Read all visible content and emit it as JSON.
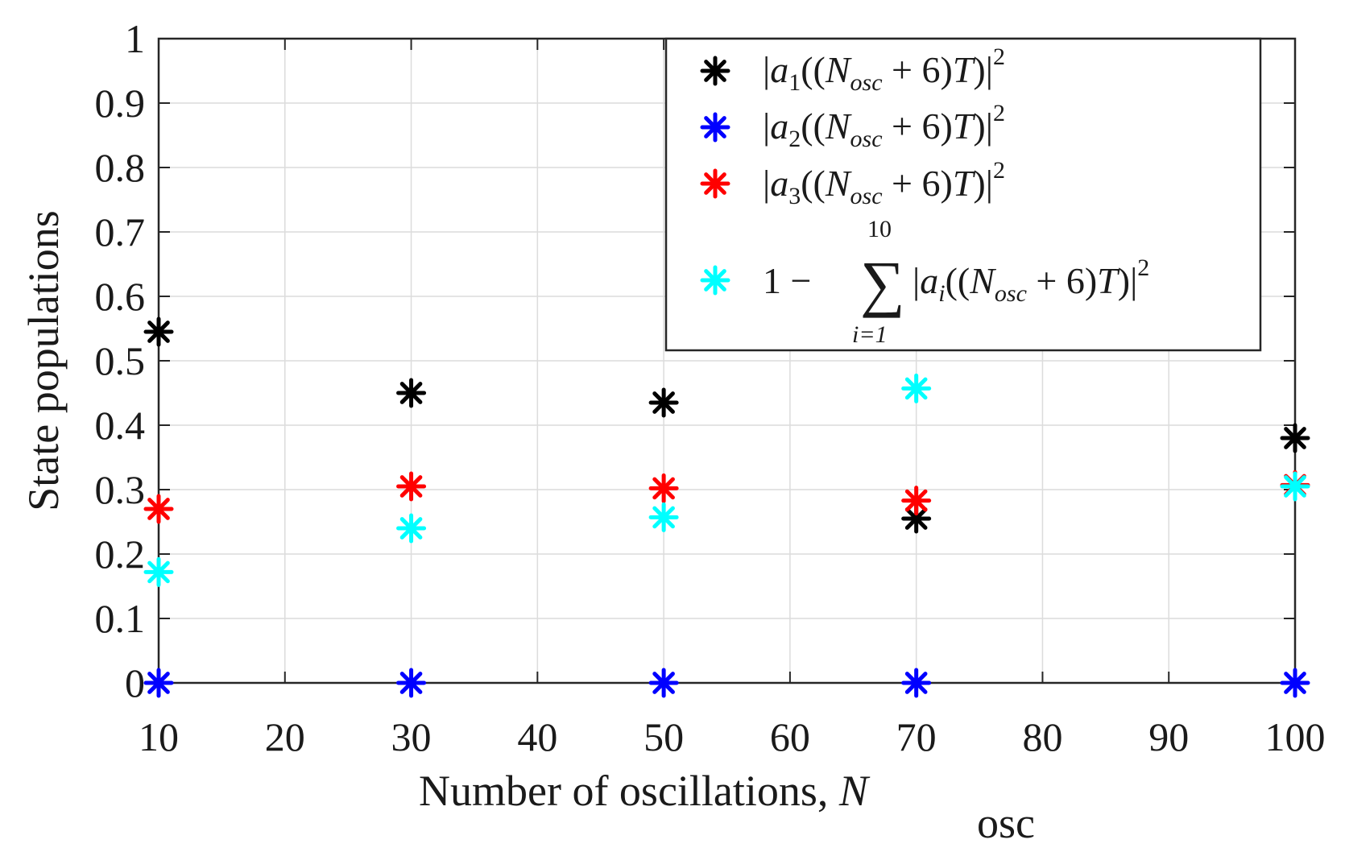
{
  "chart_data": {
    "type": "scatter",
    "title": "",
    "xlabel": "Number of oscillations, ",
    "xlabel_var": "N",
    "xlabel_sub": "osc",
    "ylabel": "State populations",
    "xlim": [
      10,
      100
    ],
    "ylim": [
      0,
      1
    ],
    "grid": true,
    "x_ticks": [
      10,
      20,
      30,
      40,
      50,
      60,
      70,
      80,
      90,
      100
    ],
    "x_tick_labels": [
      "10",
      "20",
      "30",
      "40",
      "50",
      "60",
      "70",
      "80",
      "90",
      "100"
    ],
    "y_ticks": [
      0,
      0.1,
      0.2,
      0.3,
      0.4,
      0.5,
      0.6,
      0.7,
      0.8,
      0.9,
      1
    ],
    "y_tick_labels": [
      "0",
      "0.1",
      "0.2",
      "0.3",
      "0.4",
      "0.5",
      "0.6",
      "0.7",
      "0.8",
      "0.9",
      "1"
    ],
    "x": [
      10,
      30,
      50,
      70,
      100
    ],
    "series": [
      {
        "name": "|a1((Nosc + 6)T)|^2",
        "key": "a1",
        "color": "#000000",
        "values": [
          0.545,
          0.45,
          0.435,
          0.255,
          0.38
        ]
      },
      {
        "name": "|a2((Nosc + 6)T)|^2",
        "key": "a2",
        "color": "#0000ff",
        "values": [
          0.0,
          0.0,
          0.0,
          0.0,
          0.0
        ]
      },
      {
        "name": "|a3((Nosc + 6)T)|^2",
        "key": "a3",
        "color": "#ff0000",
        "values": [
          0.27,
          0.305,
          0.302,
          0.283,
          0.307
        ]
      },
      {
        "name": "1 - sum_{i=1}^{10} |ai((Nosc + 6)T)|^2",
        "key": "rest",
        "color": "#00ffff",
        "values": [
          0.172,
          0.24,
          0.257,
          0.457,
          0.305
        ]
      }
    ],
    "legend_position": "top-right",
    "legend": {
      "a1": {
        "prefix": "|",
        "coef": "a",
        "sub": "1",
        "body": "((N",
        "osc": "osc",
        "tail": " + 6)T)|",
        "sup": "2"
      },
      "a2": {
        "prefix": "|",
        "coef": "a",
        "sub": "2",
        "body": "((N",
        "osc": "osc",
        "tail": " + 6)T)|",
        "sup": "2"
      },
      "a3": {
        "prefix": "|",
        "coef": "a",
        "sub": "3",
        "body": "((N",
        "osc": "osc",
        "tail": " + 6)T)|",
        "sup": "2"
      },
      "rest": {
        "lead": "1 − ",
        "sum_sym": "∑",
        "sum_upper": "10",
        "sum_lower": "i=1",
        "prefix": "|",
        "coef": "a",
        "sub": "i",
        "body": "((N",
        "osc": "osc",
        "tail": " + 6)T)|",
        "sup": "2"
      }
    }
  }
}
